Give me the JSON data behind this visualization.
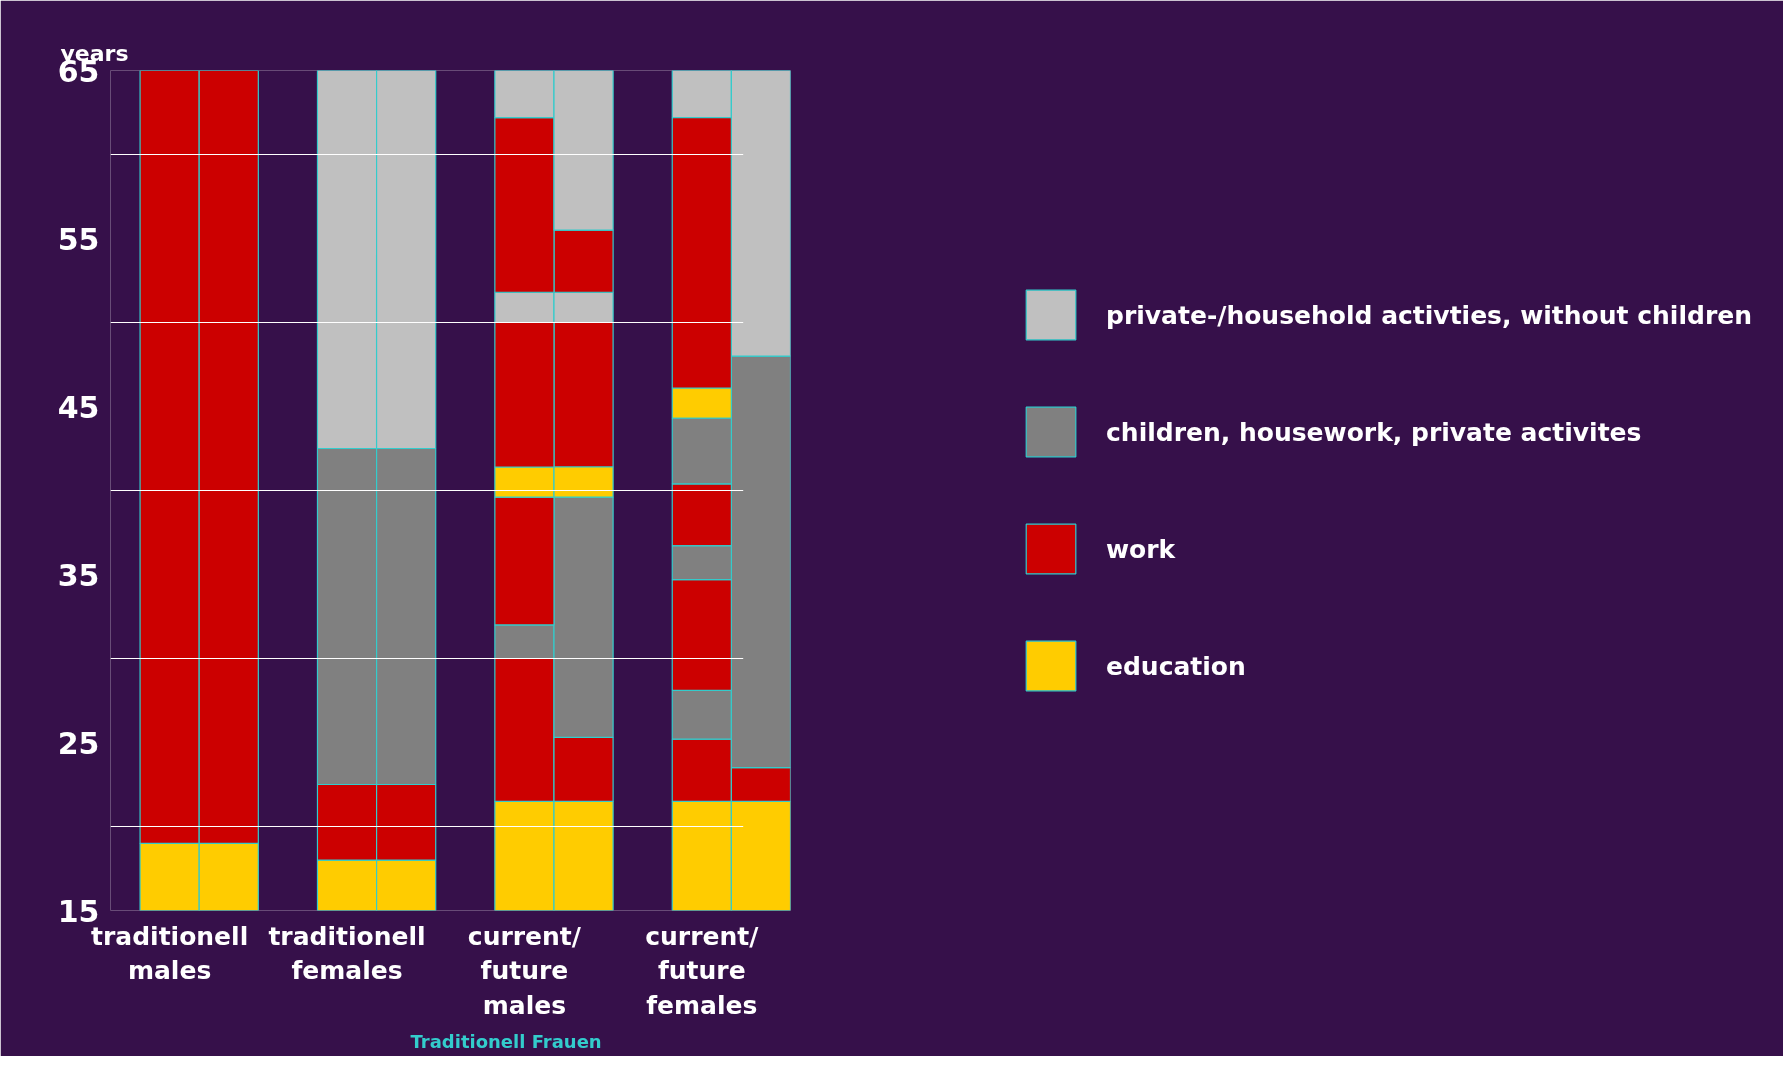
{
  "chart_data": {
    "type": "bar",
    "ylabel": "years",
    "categories": [
      "traditionell\nmales",
      null,
      null,
      "traditionell\nfemales",
      null,
      null,
      "current/\nfuture\nmales",
      null,
      null,
      "current/\nfuture\nfemales",
      null
    ],
    "series": [
      {
        "name": "education",
        "color": "#ffcc00",
        "base": [
          15,
          15,
          null,
          15,
          15,
          null,
          15,
          15,
          null,
          15,
          15
        ],
        "values": [
          4,
          4,
          null,
          3,
          3,
          null,
          6.5,
          6.5,
          null,
          6.5,
          6.5
        ]
      },
      {
        "name": "work",
        "color": "#cc0000",
        "base": [
          19,
          19,
          null,
          18,
          18,
          null,
          21.5,
          21.5,
          null,
          21.5,
          21.5
        ],
        "values": [
          46,
          46,
          null,
          4.5,
          4.5,
          null,
          8.5,
          3.8,
          null,
          3.7,
          2
        ]
      },
      {
        "name": "children, housework, private activites",
        "color": "#808080",
        "base": [
          null,
          null,
          null,
          22.5,
          22.5,
          null,
          30,
          25.3,
          null,
          25.2,
          23.5
        ],
        "values": [
          null,
          null,
          null,
          20,
          20,
          null,
          2,
          14.3,
          null,
          2.9,
          24.5
        ]
      },
      {
        "name": "private-/household activties, without children",
        "color": "#c0c0c0",
        "base": [
          null,
          null,
          null,
          42.5,
          42.5,
          null,
          50,
          50,
          null,
          62.2,
          48
        ],
        "values": [
          null,
          null,
          null,
          22.5,
          22.5,
          null,
          1.8,
          1.8,
          null,
          2.8,
          17
        ]
      },
      {
        "color": "#cc0000",
        "base": [
          null,
          null,
          null,
          null,
          null,
          null,
          32,
          41.4,
          null,
          28.1,
          null
        ],
        "values": [
          null,
          null,
          null,
          null,
          null,
          null,
          7.6,
          8.6,
          null,
          6.6,
          null
        ]
      },
      {
        "color": "#ffcc00",
        "base": [
          null,
          null,
          null,
          null,
          null,
          null,
          39.6,
          39.6,
          null,
          44.3,
          null
        ],
        "values": [
          null,
          null,
          null,
          null,
          null,
          null,
          1.8,
          1.8,
          null,
          1.8,
          null
        ]
      },
      {
        "color": "#cc0000",
        "base": [
          null,
          null,
          null,
          null,
          null,
          null,
          41.4,
          51.8,
          null,
          36.7,
          null
        ],
        "values": [
          null,
          null,
          null,
          null,
          null,
          null,
          8.6,
          3.7,
          null,
          3.7,
          null
        ]
      },
      {
        "color": "#808080",
        "base": [
          null,
          null,
          null,
          null,
          null,
          null,
          null,
          null,
          null,
          34.7,
          null
        ],
        "values": [
          null,
          null,
          null,
          null,
          null,
          null,
          null,
          null,
          null,
          2,
          null
        ]
      },
      {
        "color": "#808080",
        "base": [
          null,
          null,
          null,
          null,
          null,
          null,
          null,
          null,
          null,
          40.4,
          null
        ],
        "values": [
          null,
          null,
          null,
          null,
          null,
          null,
          null,
          null,
          null,
          3.9,
          null
        ]
      },
      {
        "color": "#cc0000",
        "base": [
          null,
          null,
          null,
          null,
          null,
          null,
          51.8,
          null,
          null,
          46.1,
          null
        ],
        "values": [
          null,
          null,
          null,
          null,
          null,
          null,
          10.4,
          null,
          null,
          16.1,
          null
        ]
      },
      {
        "color": "#c0c0c0",
        "base": [
          null,
          null,
          null,
          null,
          null,
          null,
          62.2,
          55.5,
          null,
          null,
          null
        ],
        "values": [
          null,
          null,
          null,
          null,
          null,
          null,
          2.8,
          9.5,
          null,
          null,
          null
        ]
      }
    ],
    "ylim": [
      15,
      65
    ],
    "yticks": [
      15,
      {
        "value": 20,
        "label": null
      },
      25,
      {
        "value": 30,
        "label": null
      },
      35,
      {
        "value": 40,
        "label": null
      },
      45,
      {
        "value": 50,
        "label": null
      },
      55,
      {
        "value": 60,
        "label": null
      },
      65
    ],
    "grid": "y",
    "legend": "right",
    "annotations": [
      "Traditionell Frauen"
    ]
  }
}
